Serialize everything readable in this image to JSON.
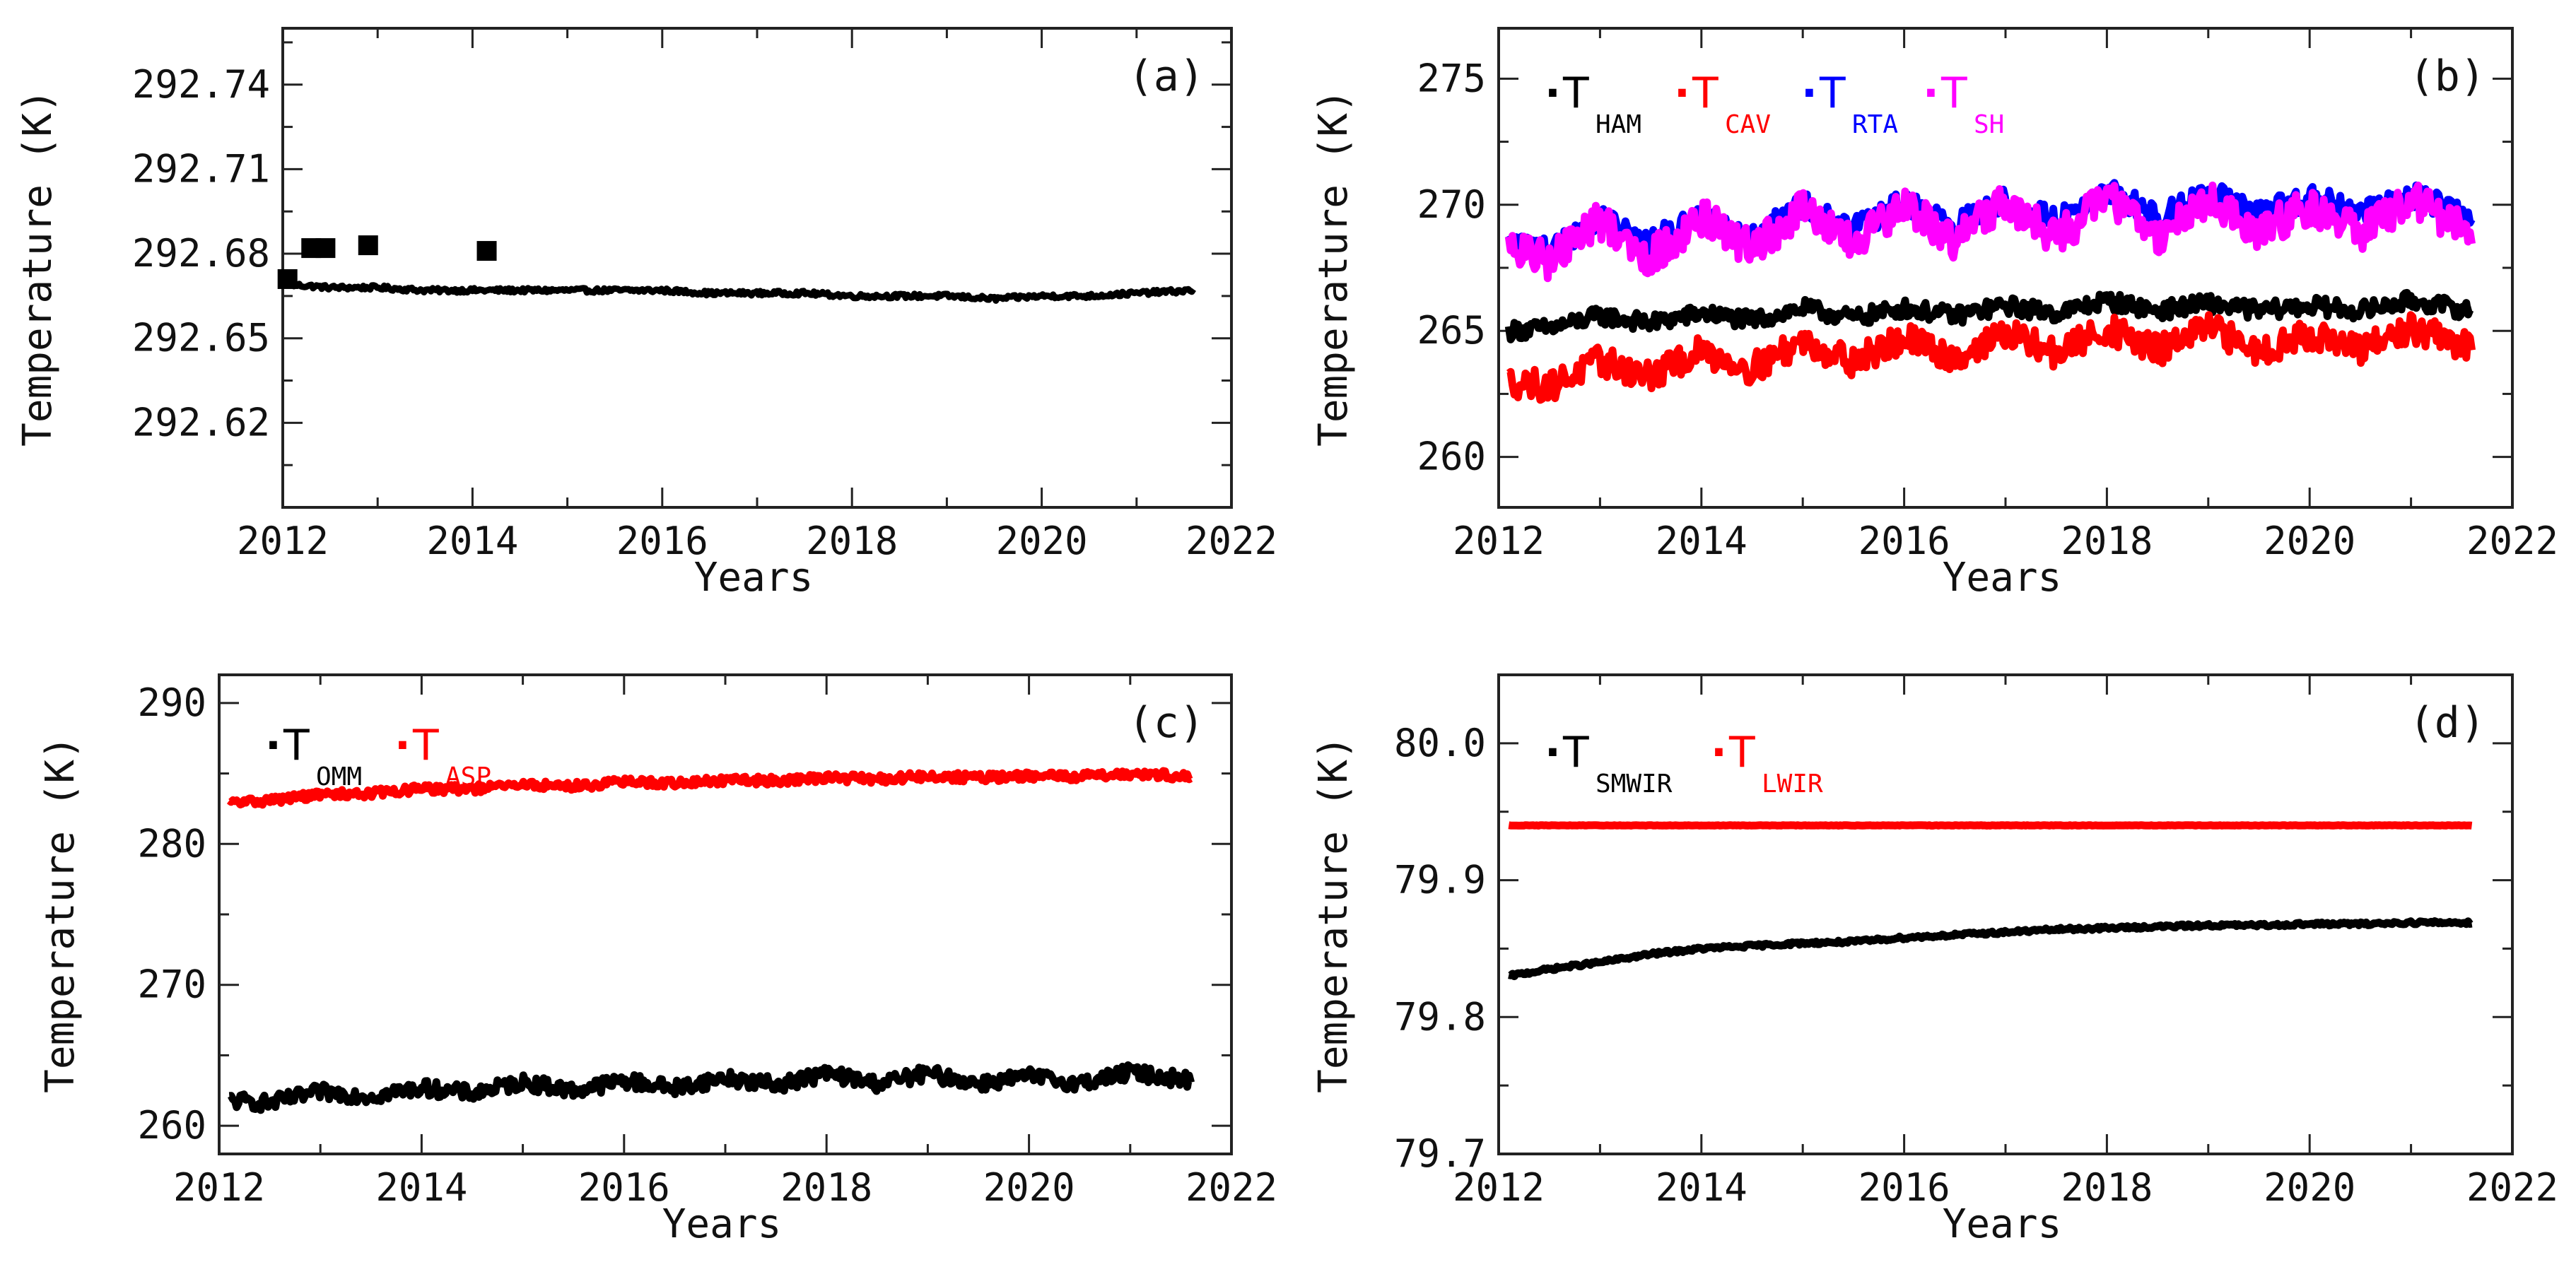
{
  "chart_data": [
    {
      "id": "a",
      "type": "line",
      "panel_label": "(a)",
      "xlabel": "Years",
      "ylabel": "Temperature (K)",
      "xlim": [
        2012,
        2022
      ],
      "ylim": [
        292.59,
        292.76
      ],
      "xticks": [
        2012,
        2014,
        2016,
        2018,
        2020,
        2022
      ],
      "xtick_labels": [
        "2012",
        "2014",
        "2016",
        "2018",
        "2020",
        "2022"
      ],
      "yticks": [
        292.62,
        292.65,
        292.68,
        292.71,
        292.74
      ],
      "ytick_labels": [
        "292.62",
        "292.65",
        "292.68",
        "292.71",
        "292.74"
      ],
      "series": [
        {
          "name": "",
          "sub": "",
          "color": "#000000",
          "noise": 0.0008,
          "points": [
            [
              2012.1,
              292.669
            ],
            [
              2012.5,
              292.668
            ],
            [
              2013.0,
              292.668
            ],
            [
              2013.5,
              292.667
            ],
            [
              2014.0,
              292.667
            ],
            [
              2014.5,
              292.667
            ],
            [
              2015.0,
              292.667
            ],
            [
              2015.5,
              292.667
            ],
            [
              2016.0,
              292.667
            ],
            [
              2016.5,
              292.666
            ],
            [
              2017.0,
              292.666
            ],
            [
              2017.5,
              292.666
            ],
            [
              2018.0,
              292.665
            ],
            [
              2018.5,
              292.665
            ],
            [
              2019.0,
              292.665
            ],
            [
              2019.5,
              292.664
            ],
            [
              2020.0,
              292.665
            ],
            [
              2020.5,
              292.665
            ],
            [
              2021.0,
              292.666
            ],
            [
              2021.6,
              292.667
            ]
          ]
        }
      ],
      "outliers": [
        [
          2012.05,
          292.671
        ],
        [
          2012.3,
          292.682
        ],
        [
          2012.45,
          292.682
        ],
        [
          2012.9,
          292.683
        ],
        [
          2014.15,
          292.681
        ]
      ]
    },
    {
      "id": "b",
      "type": "line",
      "panel_label": "(b)",
      "xlabel": "Years",
      "ylabel": "Temperature (K)",
      "xlim": [
        2012,
        2022
      ],
      "ylim": [
        258,
        277
      ],
      "xticks": [
        2012,
        2014,
        2016,
        2018,
        2020,
        2022
      ],
      "xtick_labels": [
        "2012",
        "2014",
        "2016",
        "2018",
        "2020",
        "2022"
      ],
      "yticks": [
        260,
        265,
        270,
        275
      ],
      "ytick_labels": [
        "260",
        "265",
        "270",
        "275"
      ],
      "series": [
        {
          "name": "T",
          "sub": "HAM",
          "color": "#000000",
          "noise": 0.35,
          "points": [
            [
              2012.1,
              265.0
            ],
            [
              2012.5,
              265.1
            ],
            [
              2013.0,
              265.6
            ],
            [
              2013.5,
              265.3
            ],
            [
              2014.0,
              265.7
            ],
            [
              2014.5,
              265.4
            ],
            [
              2015.0,
              265.9
            ],
            [
              2015.5,
              265.5
            ],
            [
              2016.0,
              265.9
            ],
            [
              2016.5,
              265.6
            ],
            [
              2017.0,
              266.0
            ],
            [
              2017.5,
              265.7
            ],
            [
              2018.0,
              266.2
            ],
            [
              2018.5,
              265.8
            ],
            [
              2019.0,
              266.1
            ],
            [
              2019.5,
              265.8
            ],
            [
              2020.0,
              266.0
            ],
            [
              2020.5,
              265.8
            ],
            [
              2021.0,
              266.2
            ],
            [
              2021.6,
              265.8
            ]
          ]
        },
        {
          "name": "T",
          "sub": "CAV",
          "color": "#ff0000",
          "noise": 0.6,
          "points": [
            [
              2012.1,
              263.0
            ],
            [
              2012.5,
              262.8
            ],
            [
              2013.0,
              263.8
            ],
            [
              2013.5,
              263.2
            ],
            [
              2014.0,
              264.2
            ],
            [
              2014.5,
              263.5
            ],
            [
              2015.0,
              264.6
            ],
            [
              2015.5,
              263.8
            ],
            [
              2016.0,
              264.7
            ],
            [
              2016.5,
              263.9
            ],
            [
              2017.0,
              264.9
            ],
            [
              2017.5,
              264.1
            ],
            [
              2018.0,
              265.1
            ],
            [
              2018.5,
              264.2
            ],
            [
              2019.0,
              265.1
            ],
            [
              2019.5,
              264.2
            ],
            [
              2020.0,
              264.9
            ],
            [
              2020.5,
              264.2
            ],
            [
              2021.0,
              265.1
            ],
            [
              2021.6,
              264.3
            ]
          ]
        },
        {
          "name": "T",
          "sub": "RTA",
          "color": "#0000ff",
          "noise": 0.5,
          "points": [
            [
              2012.1,
              268.5
            ],
            [
              2012.5,
              268.2
            ],
            [
              2013.0,
              269.5
            ],
            [
              2013.5,
              268.5
            ],
            [
              2014.0,
              269.7
            ],
            [
              2014.5,
              268.8
            ],
            [
              2015.0,
              270.0
            ],
            [
              2015.5,
              269.0
            ],
            [
              2016.0,
              270.1
            ],
            [
              2016.5,
              269.2
            ],
            [
              2017.0,
              270.2
            ],
            [
              2017.5,
              269.3
            ],
            [
              2018.0,
              270.6
            ],
            [
              2018.5,
              269.5
            ],
            [
              2019.0,
              270.5
            ],
            [
              2019.5,
              269.6
            ],
            [
              2020.0,
              270.3
            ],
            [
              2020.5,
              269.7
            ],
            [
              2021.0,
              270.4
            ],
            [
              2021.6,
              269.6
            ]
          ]
        },
        {
          "name": "T",
          "sub": "SH",
          "color": "#ff00ff",
          "noise": 0.75,
          "points": [
            [
              2012.1,
              268.3
            ],
            [
              2012.5,
              267.8
            ],
            [
              2013.0,
              269.4
            ],
            [
              2013.5,
              267.9
            ],
            [
              2014.0,
              269.5
            ],
            [
              2014.5,
              268.2
            ],
            [
              2015.0,
              269.8
            ],
            [
              2015.5,
              268.4
            ],
            [
              2016.0,
              269.9
            ],
            [
              2016.5,
              268.6
            ],
            [
              2017.0,
              270.1
            ],
            [
              2017.5,
              268.6
            ],
            [
              2018.0,
              270.4
            ],
            [
              2018.5,
              268.8
            ],
            [
              2019.0,
              270.2
            ],
            [
              2019.5,
              268.9
            ],
            [
              2020.0,
              270.0
            ],
            [
              2020.5,
              268.8
            ],
            [
              2021.0,
              270.2
            ],
            [
              2021.6,
              268.9
            ]
          ]
        }
      ]
    },
    {
      "id": "c",
      "type": "line",
      "panel_label": "(c)",
      "xlabel": "Years",
      "ylabel": "Temperature (K)",
      "xlim": [
        2012,
        2022
      ],
      "ylim": [
        258,
        292
      ],
      "xticks": [
        2012,
        2014,
        2016,
        2018,
        2020,
        2022
      ],
      "xtick_labels": [
        "2012",
        "2014",
        "2016",
        "2018",
        "2020",
        "2022"
      ],
      "yticks": [
        260,
        270,
        280,
        290
      ],
      "ytick_labels": [
        "260",
        "270",
        "280",
        "290"
      ],
      "series": [
        {
          "name": "T",
          "sub": "OMM",
          "color": "#000000",
          "noise": 0.55,
          "points": [
            [
              2012.1,
              261.8
            ],
            [
              2012.5,
              261.6
            ],
            [
              2013.0,
              262.4
            ],
            [
              2013.5,
              262.1
            ],
            [
              2014.0,
              262.7
            ],
            [
              2014.5,
              262.3
            ],
            [
              2015.0,
              263.1
            ],
            [
              2015.5,
              262.5
            ],
            [
              2016.0,
              263.2
            ],
            [
              2016.5,
              262.7
            ],
            [
              2017.0,
              263.4
            ],
            [
              2017.5,
              262.9
            ],
            [
              2018.0,
              263.7
            ],
            [
              2018.5,
              263.0
            ],
            [
              2019.0,
              263.7
            ],
            [
              2019.5,
              263.0
            ],
            [
              2020.0,
              263.5
            ],
            [
              2020.5,
              263.0
            ],
            [
              2021.0,
              263.8
            ],
            [
              2021.6,
              263.2
            ]
          ]
        },
        {
          "name": "T",
          "sub": "ASP",
          "color": "#ff0000",
          "noise": 0.3,
          "points": [
            [
              2012.1,
              282.9
            ],
            [
              2012.5,
              283.1
            ],
            [
              2013.0,
              283.5
            ],
            [
              2013.5,
              283.6
            ],
            [
              2014.0,
              283.9
            ],
            [
              2014.5,
              283.9
            ],
            [
              2015.0,
              284.2
            ],
            [
              2015.5,
              284.1
            ],
            [
              2016.0,
              284.4
            ],
            [
              2016.5,
              284.3
            ],
            [
              2017.0,
              284.5
            ],
            [
              2017.5,
              284.5
            ],
            [
              2018.0,
              284.7
            ],
            [
              2018.5,
              284.6
            ],
            [
              2019.0,
              284.8
            ],
            [
              2019.5,
              284.7
            ],
            [
              2020.0,
              284.8
            ],
            [
              2020.5,
              284.8
            ],
            [
              2021.0,
              285.0
            ],
            [
              2021.6,
              284.8
            ]
          ]
        }
      ]
    },
    {
      "id": "d",
      "type": "line",
      "panel_label": "(d)",
      "xlabel": "Years",
      "ylabel": "Temperature (K)",
      "xlim": [
        2012,
        2022
      ],
      "ylim": [
        79.7,
        80.05
      ],
      "xticks": [
        2012,
        2014,
        2016,
        2018,
        2020,
        2022
      ],
      "xtick_labels": [
        "2012",
        "2014",
        "2016",
        "2018",
        "2020",
        "2022"
      ],
      "yticks": [
        79.7,
        79.8,
        79.9,
        80.0
      ],
      "ytick_labels": [
        "79.7",
        "79.8",
        "79.9",
        "80.0"
      ],
      "series": [
        {
          "name": "T",
          "sub": "SMWIR",
          "color": "#000000",
          "noise": 0.0012,
          "points": [
            [
              2012.1,
              79.83
            ],
            [
              2012.5,
              79.835
            ],
            [
              2013.0,
              79.84
            ],
            [
              2013.5,
              79.846
            ],
            [
              2014.0,
              79.85
            ],
            [
              2014.5,
              79.852
            ],
            [
              2015.0,
              79.854
            ],
            [
              2015.5,
              79.855
            ],
            [
              2016.0,
              79.858
            ],
            [
              2016.5,
              79.86
            ],
            [
              2017.0,
              79.862
            ],
            [
              2017.5,
              79.864
            ],
            [
              2018.0,
              79.865
            ],
            [
              2018.5,
              79.866
            ],
            [
              2019.0,
              79.867
            ],
            [
              2019.5,
              79.867
            ],
            [
              2020.0,
              79.868
            ],
            [
              2020.5,
              79.868
            ],
            [
              2021.0,
              79.869
            ],
            [
              2021.6,
              79.869
            ]
          ]
        },
        {
          "name": "T",
          "sub": "LWIR",
          "color": "#ff0000",
          "noise": 0.0002,
          "points": [
            [
              2012.1,
              79.94
            ],
            [
              2013.0,
              79.94
            ],
            [
              2014.0,
              79.94
            ],
            [
              2015.0,
              79.94
            ],
            [
              2016.0,
              79.94
            ],
            [
              2017.0,
              79.94
            ],
            [
              2018.0,
              79.94
            ],
            [
              2019.0,
              79.94
            ],
            [
              2020.0,
              79.94
            ],
            [
              2021.0,
              79.94
            ],
            [
              2021.6,
              79.94
            ]
          ]
        }
      ]
    }
  ]
}
